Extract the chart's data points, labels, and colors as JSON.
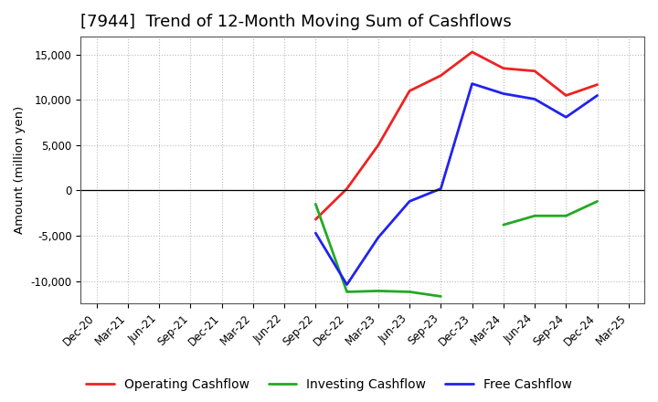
{
  "title": "[7944]  Trend of 12-Month Moving Sum of Cashflows",
  "ylabel": "Amount (million yen)",
  "ylim": [
    -12500,
    17000
  ],
  "yticks": [
    -10000,
    -5000,
    0,
    5000,
    10000,
    15000
  ],
  "background_color": "#ffffff",
  "grid_color": "#bbbbbb",
  "title_fontsize": 13,
  "axis_fontsize": 9.5,
  "tick_fontsize": 8.5,
  "legend_fontsize": 10,
  "operating_color": "#ee2222",
  "investing_color": "#22aa22",
  "free_color": "#2222ee",
  "dates": [
    "Dec-20",
    "Mar-21",
    "Jun-21",
    "Sep-21",
    "Dec-21",
    "Mar-22",
    "Jun-22",
    "Sep-22",
    "Dec-22",
    "Mar-23",
    "Jun-23",
    "Sep-23",
    "Dec-23",
    "Mar-24",
    "Jun-24",
    "Sep-24",
    "Dec-24",
    "Mar-25"
  ],
  "operating": [
    null,
    null,
    null,
    null,
    null,
    null,
    null,
    -3200,
    200,
    5000,
    11000,
    12700,
    15300,
    13500,
    13200,
    10500,
    11700,
    null
  ],
  "investing": [
    null,
    null,
    null,
    null,
    null,
    null,
    null,
    -1500,
    -11200,
    -11100,
    -11200,
    -11700,
    null,
    -3800,
    -2800,
    -2800,
    -1200,
    null
  ],
  "free": [
    null,
    null,
    null,
    null,
    null,
    null,
    null,
    -4700,
    -10400,
    -5200,
    -1200,
    200,
    11800,
    10700,
    10100,
    8100,
    10500,
    null
  ]
}
